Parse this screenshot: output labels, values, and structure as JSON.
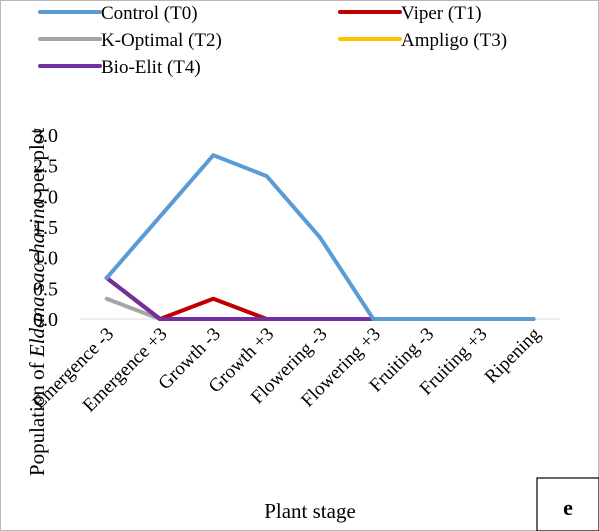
{
  "chart_data": {
    "type": "line",
    "panel_label": "e",
    "xlabel": "Plant stage",
    "ylabel": {
      "prefix": "Population of ",
      "italic": "Eldana saccharina",
      "suffix": " per plot"
    },
    "ylim": [
      0,
      3.0
    ],
    "yticks": [
      "0.0",
      "0.5",
      "1.0",
      "1.5",
      "2.0",
      "2.5",
      "3.0"
    ],
    "ytick_values": [
      0,
      0.5,
      1.0,
      1.5,
      2.0,
      2.5,
      3.0
    ],
    "grid": false,
    "legend_position": "top",
    "categories": [
      "Emergence -3",
      "Emergence +3",
      "Growth -3",
      "Growth +3",
      "Flowering -3",
      "Flowering +3",
      "Fruiting -3",
      "Fruiting +3",
      "Ripening"
    ],
    "series": [
      {
        "name": "Control (T0)",
        "color": "#5b9bd5",
        "values": [
          0.67,
          1.67,
          2.67,
          2.33,
          1.33,
          0,
          0,
          0,
          0
        ]
      },
      {
        "name": "Viper (T1)",
        "color": "#c00000",
        "values": [
          0.67,
          0,
          0.33,
          0,
          0,
          0,
          0,
          0,
          0
        ]
      },
      {
        "name": "K-Optimal (T2)",
        "color": "#a5a5a5",
        "values": [
          0.33,
          0,
          0,
          0,
          0,
          0,
          0,
          0,
          0
        ]
      },
      {
        "name": "Ampligo (T3)",
        "color": "#ffc000",
        "values": [
          0.67,
          0,
          0,
          0,
          0,
          0,
          0,
          0,
          0
        ]
      },
      {
        "name": "Bio-Elit (T4)",
        "color": "#7030a0",
        "values": [
          0.67,
          0,
          0,
          0,
          0,
          0,
          0,
          0,
          0
        ]
      }
    ]
  }
}
